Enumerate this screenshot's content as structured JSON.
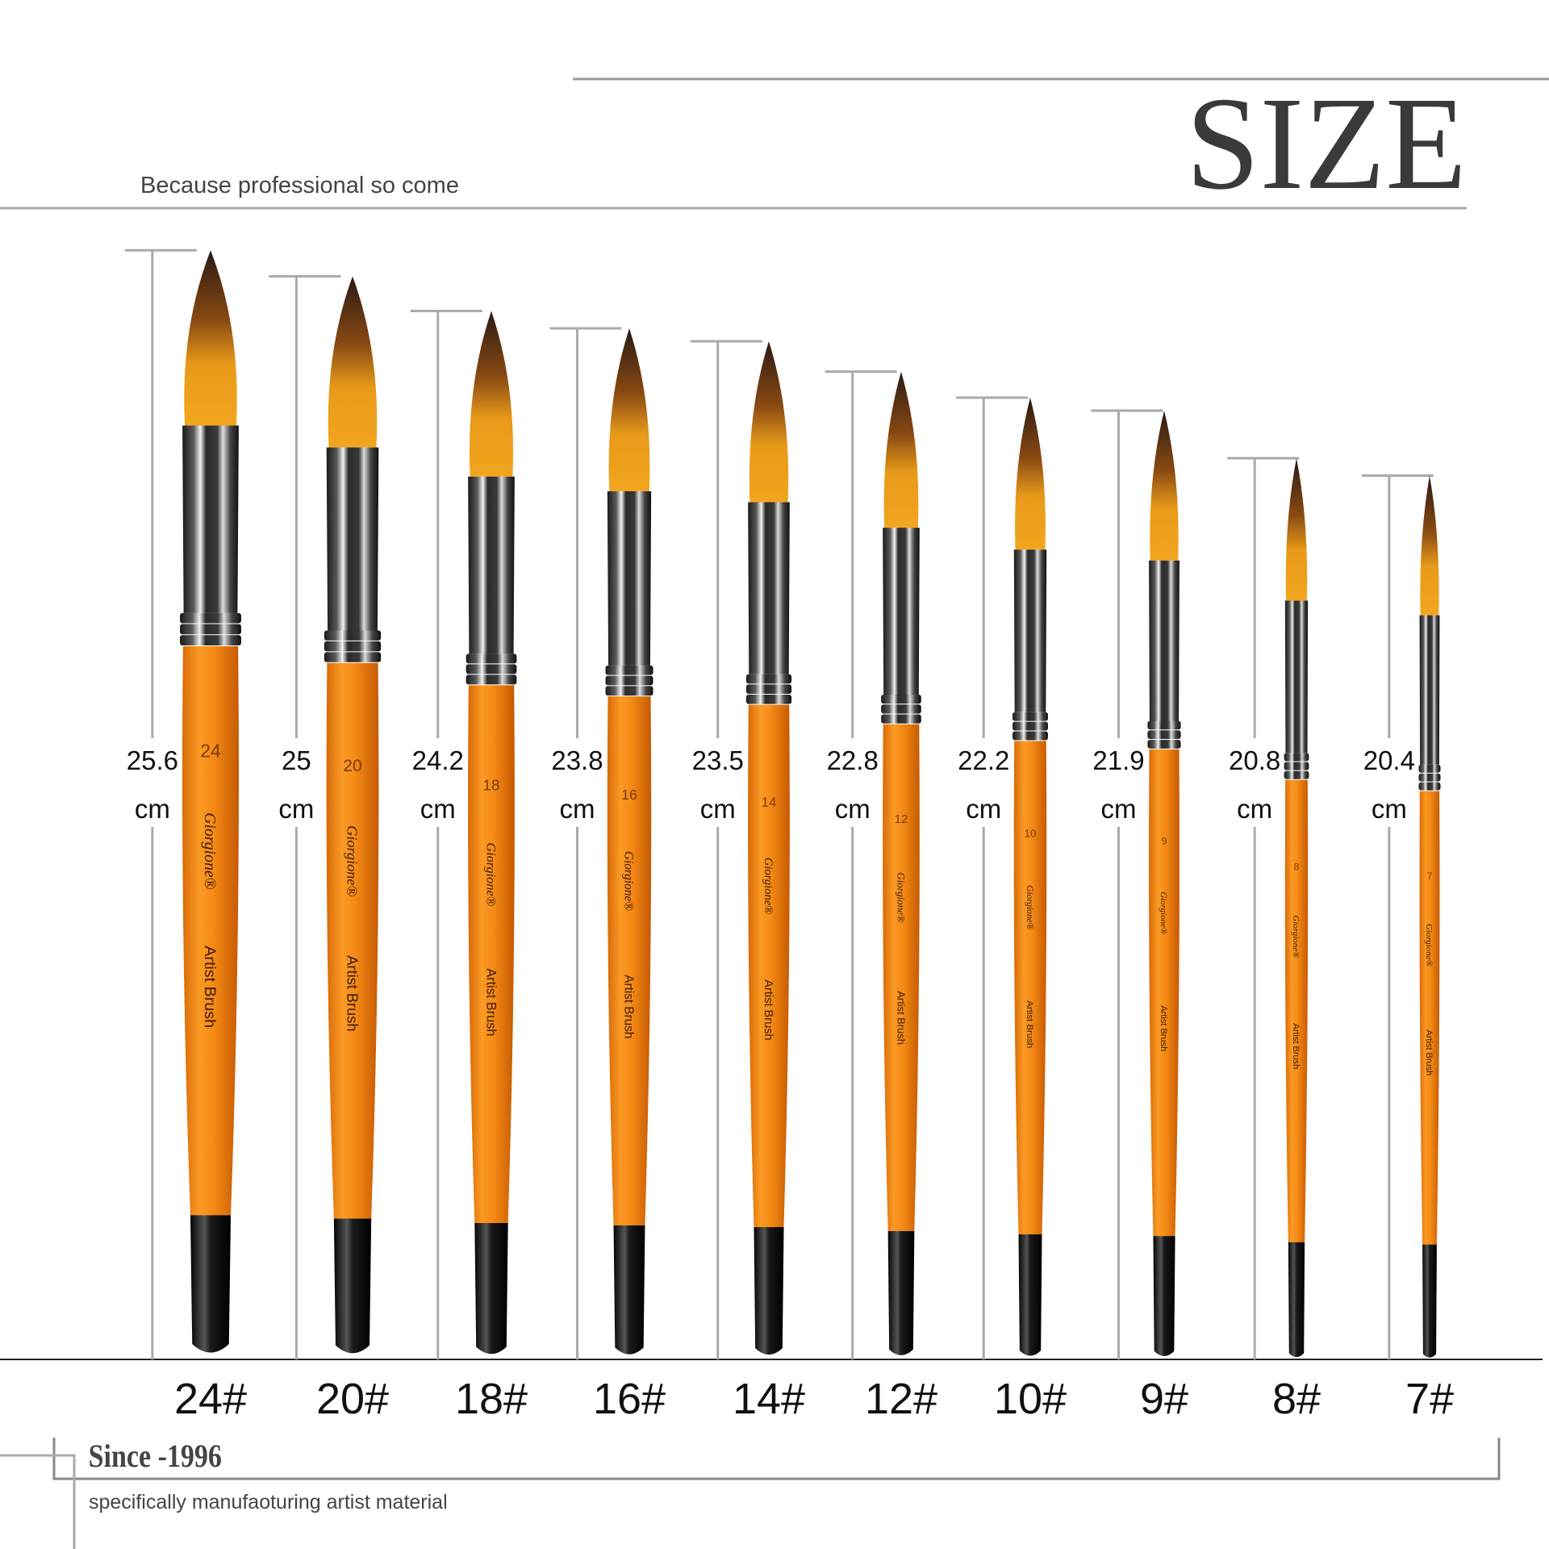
{
  "header": {
    "title": "SIZE",
    "subtitle": "Because professional so come"
  },
  "brand": "Giorgione®",
  "product": "Artist Brush",
  "unit": "cm",
  "brushes": [
    {
      "size": "24#",
      "number": "24",
      "length": 25.6
    },
    {
      "size": "20#",
      "number": "20",
      "length": 25
    },
    {
      "size": "18#",
      "number": "18",
      "length": 24.2
    },
    {
      "size": "16#",
      "number": "16",
      "length": 23.8
    },
    {
      "size": "14#",
      "number": "14",
      "length": 23.5
    },
    {
      "size": "12#",
      "number": "12",
      "length": 22.8
    },
    {
      "size": "10#",
      "number": "10",
      "length": 22.2
    },
    {
      "size": "9#",
      "number": "9",
      "length": 21.9
    },
    {
      "size": "8#",
      "number": "8",
      "length": 20.8
    },
    {
      "size": "7#",
      "number": "7",
      "length": 20.4
    }
  ],
  "footer": {
    "since": "Since -1996",
    "tagline": "specifically manufaoturing artist material"
  }
}
